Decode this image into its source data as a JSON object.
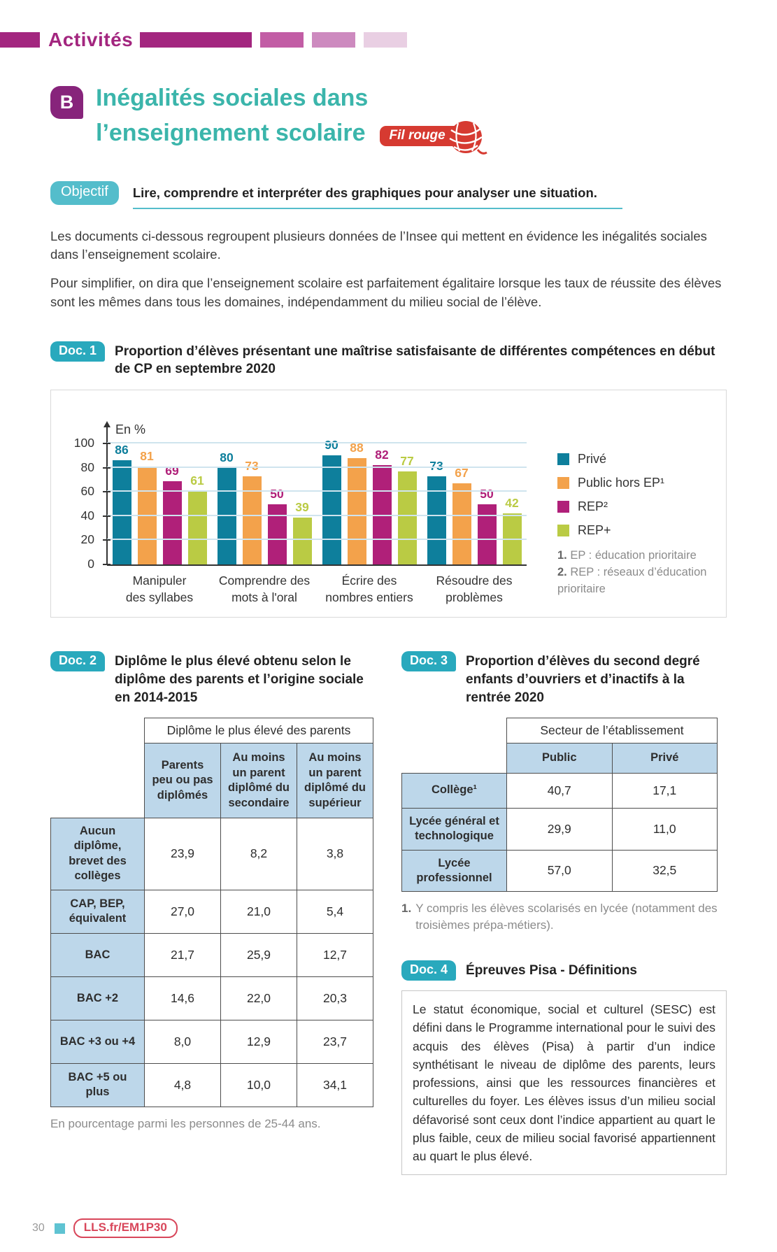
{
  "palette": {
    "magenta_header": "#a3267f",
    "purple_badge": "#87247b",
    "teal_title": "#3bb5ab",
    "teal_doc_badge": "#29a9bd",
    "objectif_teal": "#54bdcb",
    "red_fil_rouge": "#d63a31",
    "table_header_blue": "#bdd7ea",
    "footer_link_red": "#d8465a"
  },
  "header": {
    "title": "Activités"
  },
  "section": {
    "letter": "B",
    "title_line1": "Inégalités sociales dans",
    "title_line2": "l’enseignement scolaire",
    "fil_rouge_label": "Fil rouge"
  },
  "objectif": {
    "badge": "Objectif",
    "text": "Lire, comprendre et interpréter des graphiques pour analyser une situation."
  },
  "intro": {
    "p1": "Les documents ci-dessous regroupent plusieurs données de l’Insee qui mettent en évidence les inégalités sociales dans l’enseignement scolaire.",
    "p2": "Pour simplifier, on dira que l’enseignement scolaire est parfaitement égalitaire lorsque les taux de réussite des élèves sont les mêmes dans tous les domaines, indépendamment du milieu social de l’élève."
  },
  "doc1": {
    "badge": "Doc. 1",
    "title": "Proportion d’élèves présentant une maîtrise satisfaisante de différentes compétences en début de CP en septembre 2020",
    "footnotes": [
      {
        "num": "1.",
        "text": "EP : éducation prioritaire"
      },
      {
        "num": "2.",
        "text": "REP : réseaux d’éducation prioritaire"
      }
    ]
  },
  "chart_data": {
    "type": "bar",
    "unit_label": "En %",
    "categories": [
      [
        "Manipuler",
        "des syllabes"
      ],
      [
        "Comprendre des",
        "mots à l'oral"
      ],
      [
        "Écrire des",
        "nombres entiers"
      ],
      [
        "Résoudre des",
        "problèmes"
      ]
    ],
    "series": [
      {
        "name": "Privé",
        "color": "#0e7f9c",
        "values": [
          86,
          80,
          90,
          73
        ]
      },
      {
        "name": "Public hors EP¹",
        "color": "#f3a24b",
        "values": [
          81,
          73,
          88,
          67
        ]
      },
      {
        "name": "REP²",
        "color": "#b02079",
        "values": [
          69,
          50,
          82,
          50
        ]
      },
      {
        "name": "REP+",
        "color": "#bacb44",
        "values": [
          61,
          39,
          77,
          42
        ]
      }
    ],
    "ylim": [
      0,
      100
    ],
    "yticks": [
      0,
      20,
      40,
      60,
      80,
      100
    ],
    "grid": true,
    "legend_position": "right"
  },
  "doc2": {
    "badge": "Doc. 2",
    "title": "Diplôme le plus élevé obtenu selon le diplôme des parents et l’origine sociale en 2014-2015",
    "table": {
      "group_header": "Diplôme le plus élevé des parents",
      "col_headers": [
        "Parents peu ou pas diplômés",
        "Au moins un parent diplômé du secondaire",
        "Au moins un parent diplômé du supérieur"
      ],
      "rows": [
        {
          "label": "Aucun diplôme, brevet des collèges",
          "values": [
            "23,9",
            "8,2",
            "3,8"
          ]
        },
        {
          "label": "CAP, BEP, équivalent",
          "values": [
            "27,0",
            "21,0",
            "5,4"
          ]
        },
        {
          "label": "BAC",
          "values": [
            "21,7",
            "25,9",
            "12,7"
          ]
        },
        {
          "label": "BAC +2",
          "values": [
            "14,6",
            "22,0",
            "20,3"
          ]
        },
        {
          "label": "BAC +3 ou +4",
          "values": [
            "8,0",
            "12,9",
            "23,7"
          ]
        },
        {
          "label": "BAC +5 ou plus",
          "values": [
            "4,8",
            "10,0",
            "34,1"
          ]
        }
      ]
    },
    "caption": "En pourcentage parmi les personnes de 25-44 ans."
  },
  "doc3": {
    "badge": "Doc. 3",
    "title": "Proportion d’élèves du second degré enfants d’ouvriers et d’inactifs à la rentrée 2020",
    "table": {
      "group_header": "Secteur de l’établissement",
      "col_headers": [
        "Public",
        "Privé"
      ],
      "rows": [
        {
          "label": "Collège¹",
          "values": [
            "40,7",
            "17,1"
          ]
        },
        {
          "label": "Lycée général et technologique",
          "values": [
            "29,9",
            "11,0"
          ]
        },
        {
          "label": "Lycée professionnel",
          "values": [
            "57,0",
            "32,5"
          ]
        }
      ]
    },
    "footnote": {
      "num": "1.",
      "text": "Y compris les élèves scolarisés en lycée (notamment des troisièmes prépa-métiers)."
    }
  },
  "doc4": {
    "badge": "Doc. 4",
    "title": "Épreuves Pisa - Définitions",
    "text": "Le statut économique, social et culturel (SESC) est défini dans le Programme international pour le suivi des acquis des élèves (Pisa) à partir d’un indice synthétisant le niveau de diplôme des parents, leurs professions, ainsi que les ressources financières et culturelles du foyer. Les élèves issus d’un milieu social défavorisé sont ceux dont l’indice appartient au quart le plus faible, ceux de milieu social favorisé appartiennent au quart le plus élevé."
  },
  "footer": {
    "page_number": "30",
    "link_label": "LLS.fr/EM1P30"
  }
}
